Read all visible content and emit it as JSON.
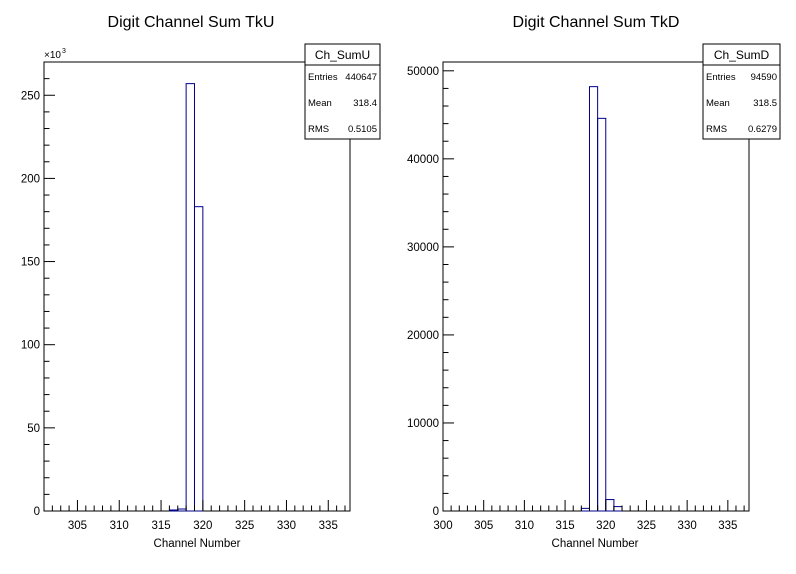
{
  "chart_data": [
    {
      "type": "bar",
      "title": "Digit Channel Sum TkU",
      "xlabel": "Channel Number",
      "ylabel": "",
      "xlim": [
        301,
        337.6
      ],
      "ylim": [
        0,
        270000
      ],
      "x_ticks": [
        305,
        310,
        315,
        320,
        325,
        330,
        335
      ],
      "y_ticks": [
        0,
        50,
        100,
        150,
        200,
        250
      ],
      "y_exponent_label": "×10",
      "y_exponent_power": "3",
      "y_tick_scale": 1000,
      "bin_width": 1,
      "bins": [
        {
          "x0": 316,
          "value": 600
        },
        {
          "x0": 317,
          "value": 1200
        },
        {
          "x0": 318,
          "value": 257000
        },
        {
          "x0": 319,
          "value": 183000
        },
        {
          "x0": 320,
          "value": 0
        }
      ],
      "line_color": "#00008b",
      "stats": {
        "name": "Ch_SumU",
        "rows": [
          {
            "label": "Entries",
            "value": "440647"
          },
          {
            "label": "Mean",
            "value": "318.4"
          },
          {
            "label": "RMS",
            "value": "0.5105"
          }
        ]
      }
    },
    {
      "type": "bar",
      "title": "Digit Channel Sum TkD",
      "xlabel": "Channel Number",
      "ylabel": "",
      "xlim": [
        300,
        337.6
      ],
      "ylim": [
        0,
        51000
      ],
      "x_ticks": [
        300,
        305,
        310,
        315,
        320,
        325,
        330,
        335
      ],
      "y_ticks": [
        0,
        10000,
        20000,
        30000,
        40000,
        50000
      ],
      "y_tick_scale": 1,
      "bin_width": 1,
      "bins": [
        {
          "x0": 317,
          "value": 300
        },
        {
          "x0": 318,
          "value": 48200
        },
        {
          "x0": 319,
          "value": 44600
        },
        {
          "x0": 320,
          "value": 1300
        },
        {
          "x0": 321,
          "value": 500
        },
        {
          "x0": 322,
          "value": 0
        }
      ],
      "line_color": "#00008b",
      "stats": {
        "name": "Ch_SumD",
        "rows": [
          {
            "label": "Entries",
            "value": "94590"
          },
          {
            "label": "Mean",
            "value": "318.5"
          },
          {
            "label": "RMS",
            "value": "0.6279"
          }
        ]
      }
    }
  ]
}
